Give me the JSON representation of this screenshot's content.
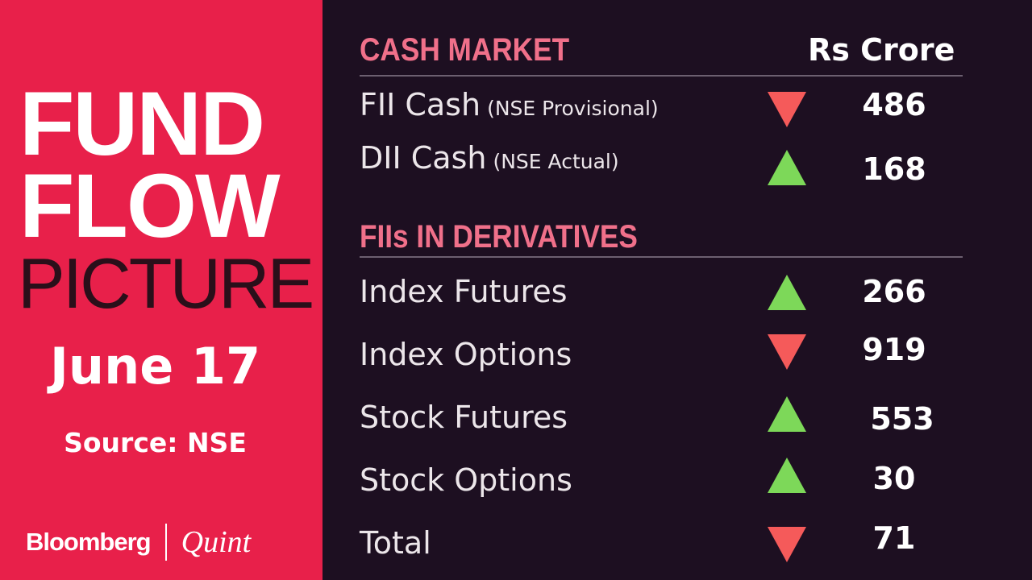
{
  "title": {
    "line1": "FUND",
    "line2": "FLOW",
    "line3": "PICTURE"
  },
  "date": "June 17",
  "source": "Source: NSE",
  "logo": {
    "left": "Bloomberg",
    "right": "Quint"
  },
  "unit": "Rs Crore",
  "colors": {
    "brand": "#e8204a",
    "background": "#1d0f21",
    "heading": "#f0708a",
    "up": "#7dd859",
    "down": "#f55a5a"
  },
  "cash_market": {
    "heading": "CASH MARKET",
    "rows": [
      {
        "label": "FII Cash",
        "sub": "(NSE Provisional)",
        "direction": "down",
        "value": "486"
      },
      {
        "label": "DII Cash",
        "sub": "(NSE Actual)",
        "direction": "up",
        "value": "168"
      }
    ]
  },
  "derivatives": {
    "heading": "FIIs IN DERIVATIVES",
    "rows": [
      {
        "label": "Index Futures",
        "direction": "up",
        "value": "266"
      },
      {
        "label": "Index Options",
        "direction": "down",
        "value": "919"
      },
      {
        "label": "Stock Futures",
        "direction": "up",
        "value": "553"
      },
      {
        "label": "Stock Options",
        "direction": "up",
        "value": "30"
      },
      {
        "label": "Total",
        "direction": "down",
        "value": "71"
      }
    ]
  }
}
